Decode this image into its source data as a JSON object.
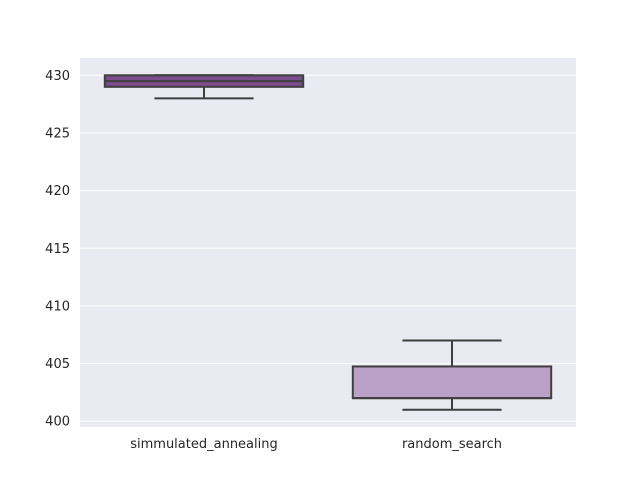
{
  "chart_data": {
    "type": "box",
    "title": "",
    "xlabel": "",
    "ylabel": "",
    "categories": [
      "simmulated_annealing",
      "random_search"
    ],
    "boxes": [
      {
        "category": "simmulated_annealing",
        "whisker_low": 428,
        "q1": 429,
        "median": 429.5,
        "q3": 430,
        "whisker_high": 430,
        "color": "#7b4d8c"
      },
      {
        "category": "random_search",
        "whisker_low": 401,
        "q1": 402,
        "median": 402,
        "q3": 404.75,
        "whisker_high": 407,
        "color": "#bba0c8"
      }
    ],
    "ylim": [
      399.5,
      431.5
    ],
    "yticks": [
      400,
      405,
      410,
      415,
      420,
      425,
      430
    ],
    "grid": true,
    "background_color": "#eaeaf2",
    "edge_color": "#3f3f3f"
  }
}
